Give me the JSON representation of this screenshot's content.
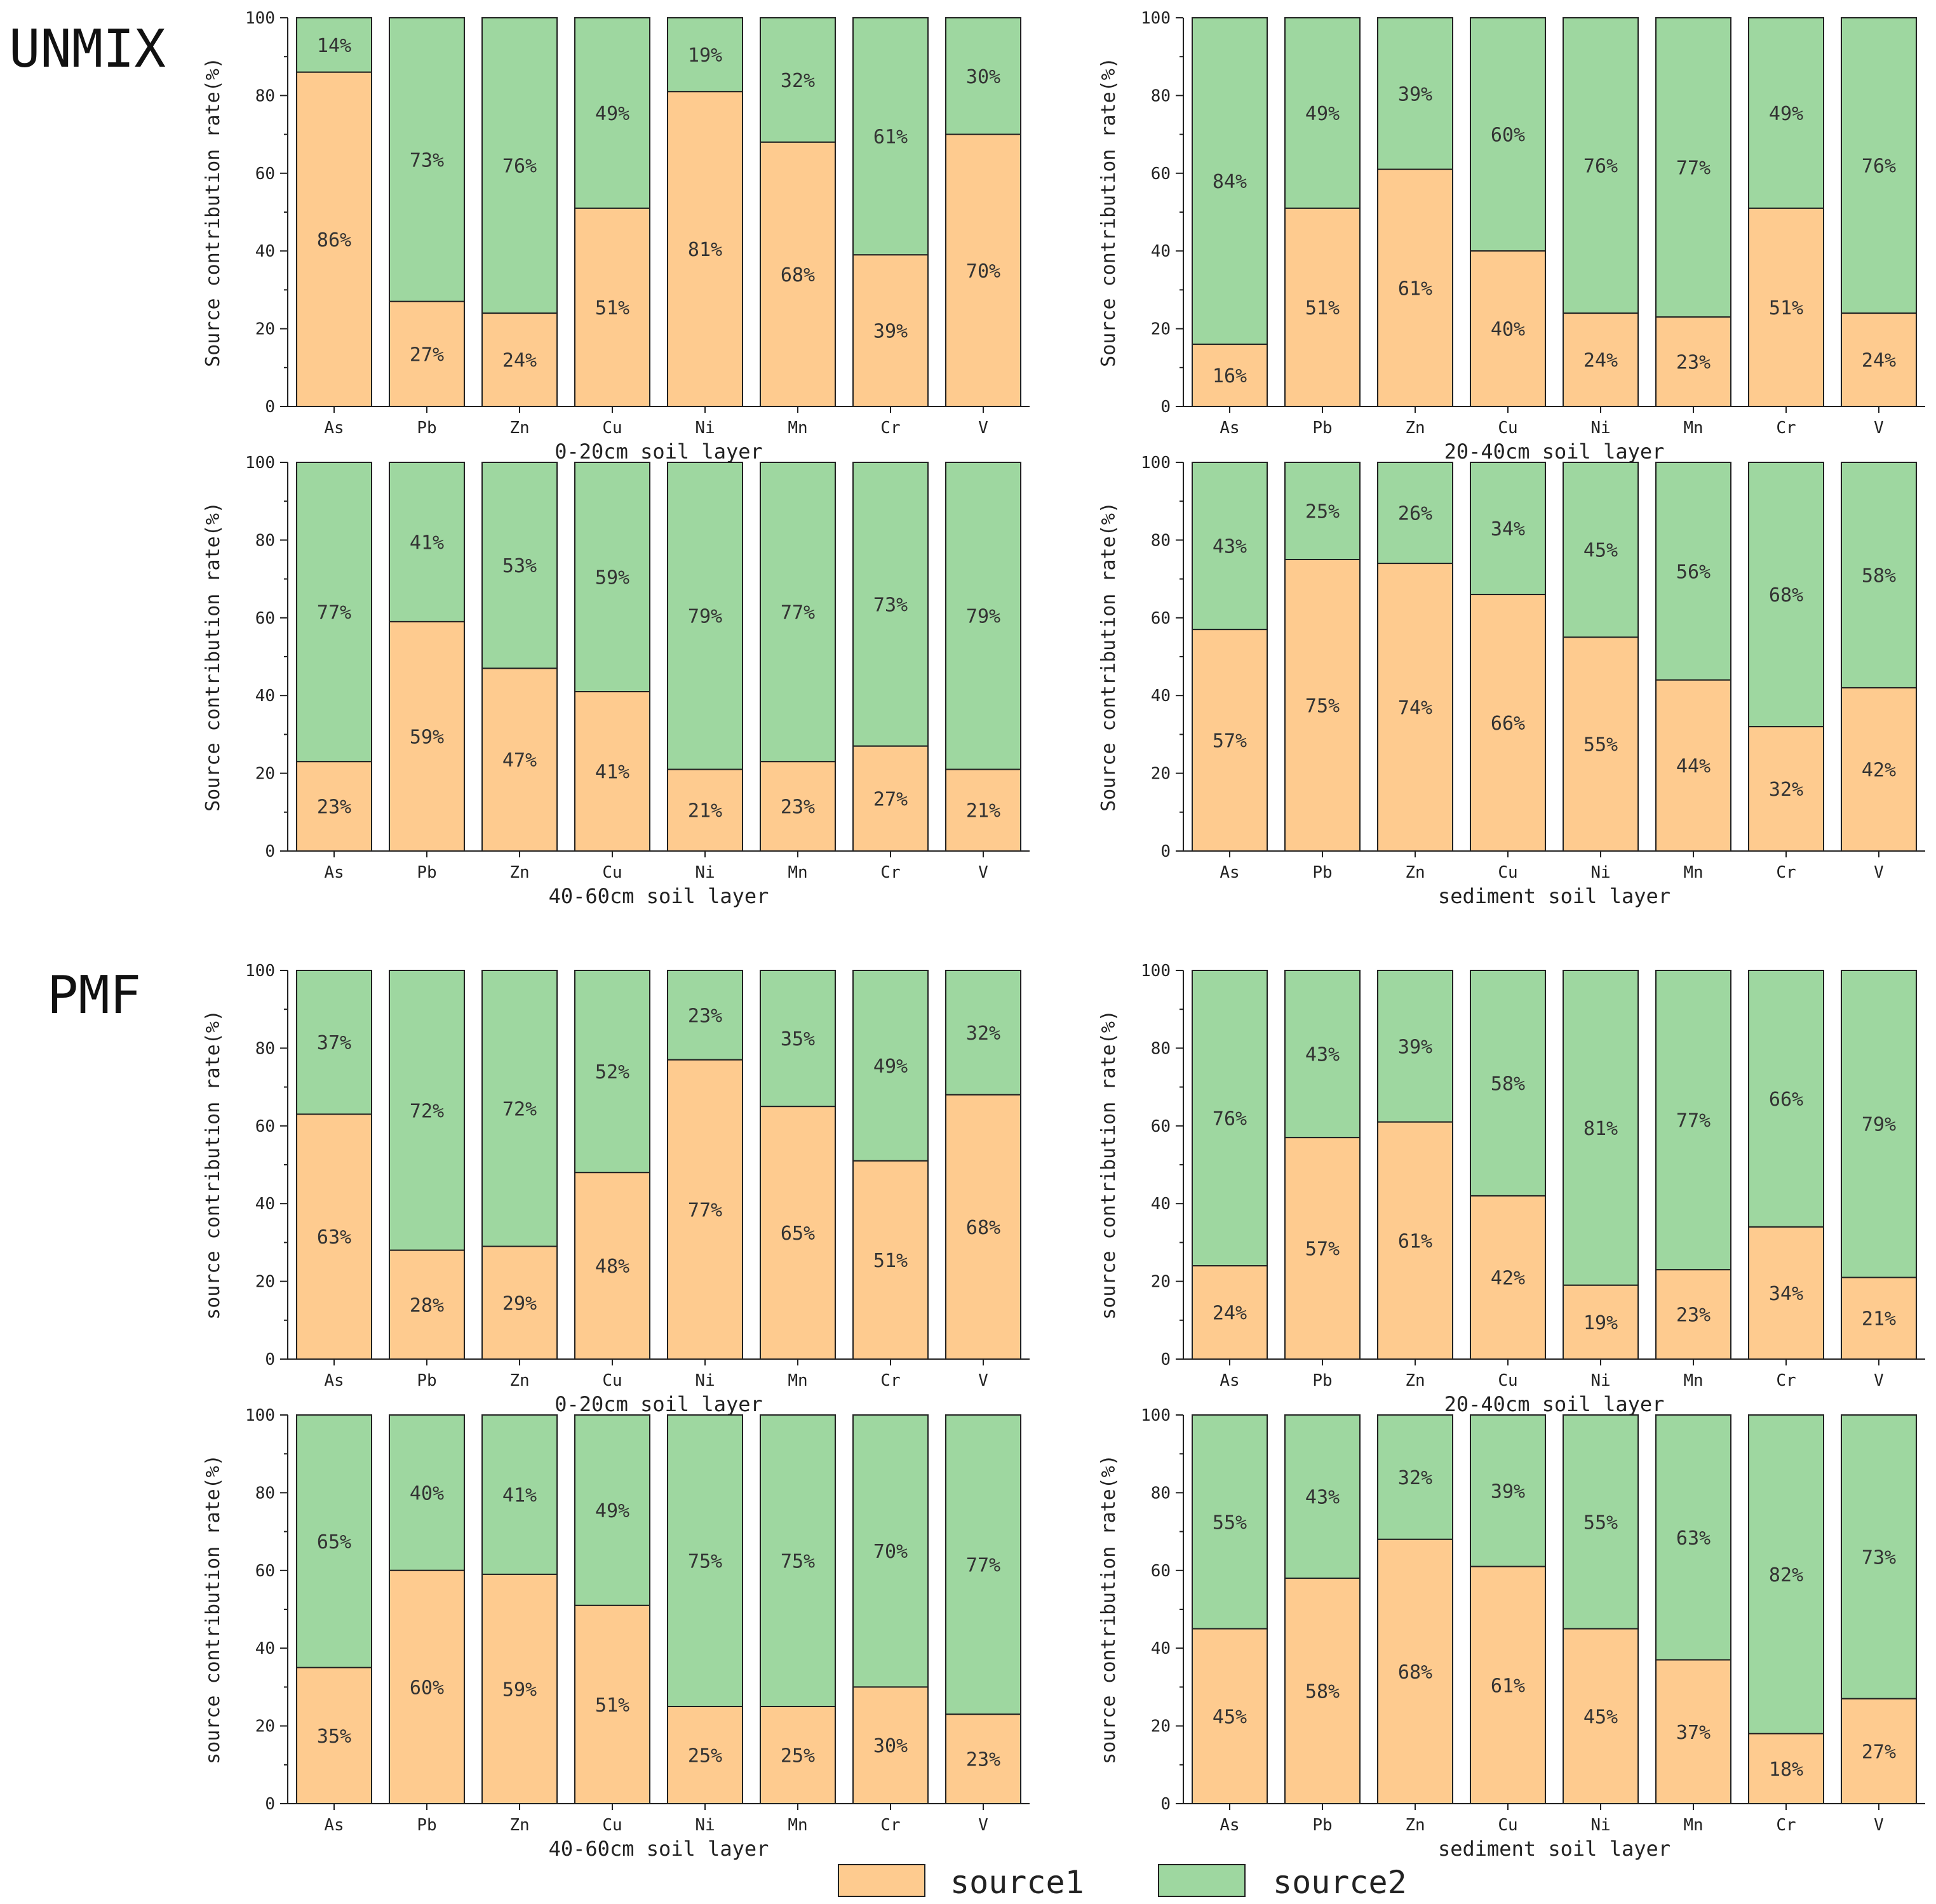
{
  "figure": {
    "legend": [
      {
        "name": "source1",
        "color": "#FECB8F"
      },
      {
        "name": "source2",
        "color": "#9ED7A0"
      }
    ]
  },
  "chart_data": [
    {
      "type": "bar",
      "stacked": true,
      "method": "UNMIX",
      "title": "",
      "xlabel": "0-20cm soil layer",
      "ylabel": "Source contribution rate(%)",
      "ylim": [
        0,
        100
      ],
      "yticks": [
        0,
        20,
        40,
        60,
        80,
        100
      ],
      "categories": [
        "As",
        "Pb",
        "Zn",
        "Cu",
        "Ni",
        "Mn",
        "Cr",
        "V"
      ],
      "series": [
        {
          "name": "source1",
          "values": [
            86,
            27,
            24,
            51,
            81,
            68,
            39,
            70
          ]
        },
        {
          "name": "source2",
          "values": [
            14,
            73,
            76,
            49,
            19,
            32,
            61,
            30
          ]
        }
      ]
    },
    {
      "type": "bar",
      "stacked": true,
      "method": "UNMIX",
      "title": "",
      "xlabel": "20-40cm soil layer",
      "ylabel": "Source contribution rate(%)",
      "ylim": [
        0,
        100
      ],
      "yticks": [
        0,
        20,
        40,
        60,
        80,
        100
      ],
      "categories": [
        "As",
        "Pb",
        "Zn",
        "Cu",
        "Ni",
        "Mn",
        "Cr",
        "V"
      ],
      "series": [
        {
          "name": "source1",
          "values": [
            16,
            51,
            61,
            40,
            24,
            23,
            51,
            24
          ]
        },
        {
          "name": "source2",
          "values": [
            84,
            49,
            39,
            60,
            76,
            77,
            49,
            76
          ]
        }
      ]
    },
    {
      "type": "bar",
      "stacked": true,
      "method": "UNMIX",
      "title": "",
      "xlabel": "40-60cm soil layer",
      "ylabel": "Source contribution rate(%)",
      "ylim": [
        0,
        100
      ],
      "yticks": [
        0,
        20,
        40,
        60,
        80,
        100
      ],
      "categories": [
        "As",
        "Pb",
        "Zn",
        "Cu",
        "Ni",
        "Mn",
        "Cr",
        "V"
      ],
      "series": [
        {
          "name": "source1",
          "values": [
            23,
            59,
            47,
            41,
            21,
            23,
            27,
            21
          ]
        },
        {
          "name": "source2",
          "values": [
            77,
            41,
            53,
            59,
            79,
            77,
            73,
            79
          ]
        }
      ]
    },
    {
      "type": "bar",
      "stacked": true,
      "method": "UNMIX",
      "title": "",
      "xlabel": "sediment soil layer",
      "ylabel": "Source contribution rate(%)",
      "ylim": [
        0,
        100
      ],
      "yticks": [
        0,
        20,
        40,
        60,
        80,
        100
      ],
      "categories": [
        "As",
        "Pb",
        "Zn",
        "Cu",
        "Ni",
        "Mn",
        "Cr",
        "V"
      ],
      "series": [
        {
          "name": "source1",
          "values": [
            57,
            75,
            74,
            66,
            55,
            44,
            32,
            42
          ]
        },
        {
          "name": "source2",
          "values": [
            43,
            25,
            26,
            34,
            45,
            56,
            68,
            58
          ]
        }
      ]
    },
    {
      "type": "bar",
      "stacked": true,
      "method": "PMF",
      "title": "",
      "xlabel": "0-20cm soil layer",
      "ylabel": "source contribution rate(%)",
      "ylim": [
        0,
        100
      ],
      "yticks": [
        0,
        20,
        40,
        60,
        80,
        100
      ],
      "categories": [
        "As",
        "Pb",
        "Zn",
        "Cu",
        "Ni",
        "Mn",
        "Cr",
        "V"
      ],
      "series": [
        {
          "name": "source1",
          "values": [
            63,
            28,
            29,
            48,
            77,
            65,
            51,
            68
          ]
        },
        {
          "name": "source2",
          "values": [
            37,
            72,
            72,
            52,
            23,
            35,
            49,
            32
          ]
        }
      ]
    },
    {
      "type": "bar",
      "stacked": true,
      "method": "PMF",
      "title": "",
      "xlabel": "20-40cm soil layer",
      "ylabel": "source contribution rate(%)",
      "ylim": [
        0,
        100
      ],
      "yticks": [
        0,
        20,
        40,
        60,
        80,
        100
      ],
      "categories": [
        "As",
        "Pb",
        "Zn",
        "Cu",
        "Ni",
        "Mn",
        "Cr",
        "V"
      ],
      "series": [
        {
          "name": "source1",
          "values": [
            24,
            57,
            61,
            42,
            19,
            23,
            34,
            21
          ]
        },
        {
          "name": "source2",
          "values": [
            76,
            43,
            39,
            58,
            81,
            77,
            66,
            79
          ]
        }
      ]
    },
    {
      "type": "bar",
      "stacked": true,
      "method": "PMF",
      "title": "",
      "xlabel": "40-60cm soil layer",
      "ylabel": "source contribution rate(%)",
      "ylim": [
        0,
        100
      ],
      "yticks": [
        0,
        20,
        40,
        60,
        80,
        100
      ],
      "categories": [
        "As",
        "Pb",
        "Zn",
        "Cu",
        "Ni",
        "Mn",
        "Cr",
        "V"
      ],
      "series": [
        {
          "name": "source1",
          "values": [
            35,
            60,
            59,
            51,
            25,
            25,
            30,
            23
          ]
        },
        {
          "name": "source2",
          "values": [
            65,
            40,
            41,
            49,
            75,
            75,
            70,
            77
          ]
        }
      ]
    },
    {
      "type": "bar",
      "stacked": true,
      "method": "PMF",
      "title": "",
      "xlabel": "sediment soil layer",
      "ylabel": "source contribution rate(%)",
      "ylim": [
        0,
        100
      ],
      "yticks": [
        0,
        20,
        40,
        60,
        80,
        100
      ],
      "categories": [
        "As",
        "Pb",
        "Zn",
        "Cu",
        "Ni",
        "Mn",
        "Cr",
        "V"
      ],
      "series": [
        {
          "name": "source1",
          "values": [
            45,
            58,
            68,
            61,
            45,
            37,
            18,
            27
          ]
        },
        {
          "name": "source2",
          "values": [
            55,
            43,
            32,
            39,
            55,
            63,
            82,
            73
          ]
        }
      ]
    }
  ]
}
